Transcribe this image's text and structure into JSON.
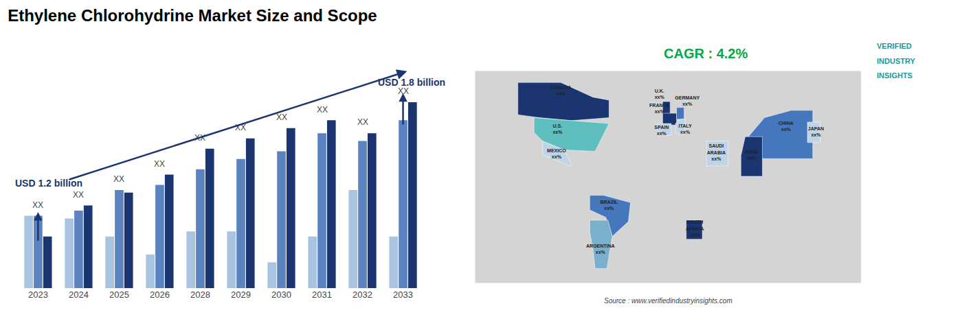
{
  "chart_data": [
    {
      "type": "bar",
      "title": "Ethylene Chlorohydrine Market Size and Scope",
      "categories": [
        "2023",
        "2024",
        "2025",
        "2026",
        "2028",
        "2029",
        "2030",
        "2031",
        "2032",
        "2033"
      ],
      "series": [
        {
          "color": "#a8c4e0",
          "values": [
            0.28,
            0.27,
            0.2,
            0.13,
            0.22,
            0.22,
            0.1,
            0.2,
            0.38,
            0.2
          ]
        },
        {
          "color": "#5b83c0",
          "values": [
            0.28,
            0.3,
            0.38,
            0.4,
            0.46,
            0.5,
            0.53,
            0.6,
            0.57,
            0.65
          ]
        },
        {
          "color": "#1a3570",
          "values": [
            0.2,
            0.32,
            0.37,
            0.44,
            0.54,
            0.58,
            0.62,
            0.65,
            0.6,
            0.72
          ]
        }
      ],
      "ylim": [
        0,
        0.88
      ],
      "grid": false,
      "tick_labels": "x",
      "annotations": [
        {
          "text": "XX",
          "x": "2023"
        },
        {
          "text": "XX",
          "x": "2024"
        },
        {
          "text": "XX",
          "x": "2025"
        },
        {
          "text": "XX",
          "x": "2026"
        },
        {
          "text": "XX",
          "x": "2028"
        },
        {
          "text": "XX",
          "x": "2029"
        },
        {
          "text": "XX",
          "x": "2030"
        },
        {
          "text": "XX",
          "x": "2031"
        },
        {
          "text": "XX",
          "x": "2032"
        },
        {
          "text": "XX",
          "x": "2033"
        },
        {
          "text": "USD 1.2 billion",
          "x": "2023",
          "color": "#1a3570"
        },
        {
          "text": "USD 1.8 billion",
          "x": "2033",
          "color": "#1a3570"
        },
        {
          "text": "CAGR : 4.2%",
          "color": "#00aa44"
        },
        {
          "text": "Source : www.verifiedindustryinsights.com"
        },
        {
          "text": "VERIFIED",
          "color": "#1a9999"
        },
        {
          "text": "INDUSTRY",
          "color": "#1a9999"
        },
        {
          "text": "INSIGHTS",
          "color": "#1a9999"
        }
      ]
    },
    {
      "type": "map",
      "xlim": [
        -180,
        180
      ],
      "ylim": [
        -65,
        80
      ],
      "tick_labels": false,
      "color": "#d4d4d4",
      "colors": [
        "#1a3570",
        "#5fbfbf",
        "#c0d4e8",
        "#4477bb",
        "#7ab0cc",
        "#1a3570",
        "#1a3570",
        "#4477bb",
        "#c0d4e8",
        "#c0d4e8",
        "#c0d4e8",
        "#4477bb",
        "#1a3570",
        "#c0d4e8",
        "#1a3570"
      ],
      "annotations": [
        {
          "text": "CANADA\nxx%"
        },
        {
          "text": "U.S.\nxx%"
        },
        {
          "text": "MEXICO\nxx%"
        },
        {
          "text": "BRAZIL\nxx%"
        },
        {
          "text": "ARGENTINA\nxx%"
        },
        {
          "text": "U.K.\nxx%"
        },
        {
          "text": "FRANCE\nxx%"
        },
        {
          "text": "GERMANY\nxx%"
        },
        {
          "text": "SPAIN\nxx%"
        },
        {
          "text": "ITALY\nxx%"
        },
        {
          "text": "SAUDI\nARABIA\nxx%"
        },
        {
          "text": "CHINA\nxx%"
        },
        {
          "text": "INDIA\nxx%"
        },
        {
          "text": "JAPAN\nxx%"
        },
        {
          "text": "SOUTH\nAFRICA\nxx%"
        }
      ]
    }
  ]
}
